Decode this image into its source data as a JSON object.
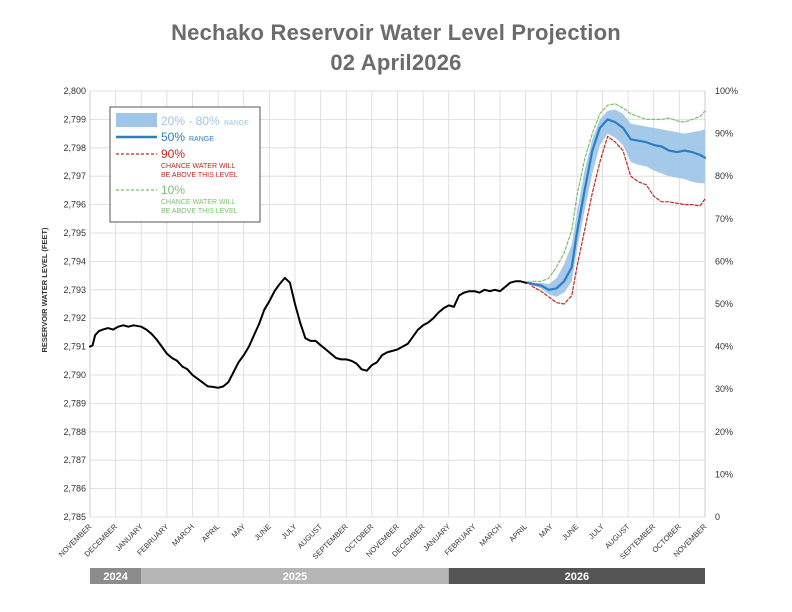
{
  "title_line1": "Nechako Reservoir Water Level Projection",
  "title_line2": "02 April2026",
  "chart_data": {
    "type": "line",
    "ylabel": "RESERVOIR WATER LEVEL (FEET)",
    "ylim": [
      2785,
      2800
    ],
    "y_ticks": [
      "2,785",
      "2,786",
      "2,787",
      "2,788",
      "2,789",
      "2,790",
      "2,791",
      "2,792",
      "2,793",
      "2,794",
      "2,795",
      "2,796",
      "2,797",
      "2,798",
      "2,799",
      "2,800"
    ],
    "y2lim": [
      0,
      100
    ],
    "y2_ticks": [
      "0",
      "10%",
      "20%",
      "30%",
      "40%",
      "50%",
      "60%",
      "70%",
      "80%",
      "90%",
      "100%"
    ],
    "x_range_months": [
      0,
      24
    ],
    "x_ticks": [
      "NOVEMBER",
      "DECEMBER",
      "JANUARY",
      "FEBRUARY",
      "MARCH",
      "APRIL",
      "MAY",
      "JUNE",
      "JULY",
      "AUGUST",
      "SEPTEMBER",
      "OCTOBER",
      "NOVEMBER",
      "DECEMBER",
      "JANUARY",
      "FEBRUARY",
      "MARCH",
      "APRIL",
      "MAY",
      "JUNE",
      "JULY",
      "AUGUST",
      "SEPTEMBER",
      "OCTOBER",
      "NOVEMBER"
    ],
    "years": [
      {
        "label": "2024",
        "start": 0,
        "end": 2,
        "color": "#8c8c8c"
      },
      {
        "label": "2025",
        "start": 2,
        "end": 14,
        "color": "#b5b5b5"
      },
      {
        "label": "2026",
        "start": 14,
        "end": 24,
        "color": "#555555"
      }
    ],
    "grid": true,
    "legend_position": "top-left",
    "legend": {
      "band_label": "20% - 80%",
      "band_suffix": "RANGE",
      "median_label": "50%",
      "median_suffix": "RANGE",
      "p90_label": "90%",
      "p90_desc1": "CHANCE WATER WILL",
      "p90_desc2": "BE ABOVE THIS LEVEL",
      "p10_label": "10%",
      "p10_desc1": "CHANCE WATER WILL",
      "p10_desc2": "BE ABOVE THIS LEVEL"
    },
    "colors": {
      "historical": "#000000",
      "median": "#2e7cc4",
      "band": "#9fc6e8",
      "p90": "#c0281e",
      "p10": "#7cbf6e",
      "grid": "#d9d9d9"
    },
    "series": [
      {
        "name": "historical",
        "x": [
          0,
          0.1,
          0.2,
          0.35,
          0.5,
          0.7,
          0.9,
          1.0,
          1.1,
          1.3,
          1.5,
          1.7,
          2.0,
          2.2,
          2.4,
          2.6,
          2.8,
          3.0,
          3.2,
          3.4,
          3.6,
          3.8,
          4.0,
          4.3,
          4.6,
          4.8,
          5.0,
          5.2,
          5.4,
          5.6,
          5.8,
          6.0,
          6.2,
          6.4,
          6.6,
          6.8,
          7.0,
          7.2,
          7.4,
          7.6,
          7.8,
          8.0,
          8.2,
          8.4,
          8.6,
          8.8,
          9.0,
          9.2,
          9.4,
          9.6,
          9.8,
          10.0,
          10.2,
          10.4,
          10.6,
          10.8,
          11.0,
          11.2,
          11.4,
          11.6,
          11.8,
          12.0,
          12.2,
          12.4,
          12.6,
          12.8,
          13.0,
          13.2,
          13.4,
          13.6,
          13.8,
          14.0,
          14.2,
          14.4,
          14.6,
          14.8,
          15.0,
          15.2,
          15.4,
          15.6,
          15.8,
          16.0,
          16.2,
          16.4,
          16.6,
          16.8,
          17.0,
          17.1
        ],
        "values": [
          2791.0,
          2791.05,
          2791.4,
          2791.55,
          2791.6,
          2791.65,
          2791.6,
          2791.65,
          2791.7,
          2791.75,
          2791.7,
          2791.75,
          2791.7,
          2791.6,
          2791.45,
          2791.25,
          2791.0,
          2790.75,
          2790.6,
          2790.5,
          2790.3,
          2790.2,
          2790.0,
          2789.8,
          2789.6,
          2789.58,
          2789.55,
          2789.6,
          2789.75,
          2790.1,
          2790.45,
          2790.7,
          2791.0,
          2791.4,
          2791.8,
          2792.3,
          2792.6,
          2792.95,
          2793.2,
          2793.42,
          2793.25,
          2792.5,
          2791.85,
          2791.3,
          2791.2,
          2791.2,
          2791.05,
          2790.9,
          2790.75,
          2790.6,
          2790.55,
          2790.55,
          2790.5,
          2790.4,
          2790.2,
          2790.15,
          2790.35,
          2790.45,
          2790.7,
          2790.8,
          2790.85,
          2790.9,
          2791.0,
          2791.1,
          2791.35,
          2791.6,
          2791.75,
          2791.85,
          2792.0,
          2792.2,
          2792.35,
          2792.45,
          2792.4,
          2792.8,
          2792.9,
          2792.95,
          2792.95,
          2792.9,
          2793.0,
          2792.95,
          2793.0,
          2792.95,
          2793.1,
          2793.25,
          2793.3,
          2793.3,
          2793.25,
          2793.25
        ]
      },
      {
        "name": "50%",
        "x": [
          17.1,
          17.3,
          17.6,
          17.9,
          18.2,
          18.5,
          18.8,
          19.0,
          19.3,
          19.6,
          19.9,
          20.2,
          20.5,
          20.8,
          21.1,
          21.4,
          21.7,
          22.0,
          22.3,
          22.6,
          22.9,
          23.2,
          23.5,
          23.8,
          24.0
        ],
        "values": [
          2793.25,
          2793.2,
          2793.15,
          2793.0,
          2793.05,
          2793.3,
          2793.8,
          2795.0,
          2796.5,
          2797.9,
          2798.7,
          2799.0,
          2798.9,
          2798.7,
          2798.3,
          2798.25,
          2798.2,
          2798.1,
          2798.05,
          2797.9,
          2797.85,
          2797.9,
          2797.85,
          2797.75,
          2797.65
        ]
      },
      {
        "name": "90%",
        "x": [
          17.1,
          17.3,
          17.6,
          17.9,
          18.2,
          18.5,
          18.8,
          19.0,
          19.3,
          19.6,
          19.9,
          20.2,
          20.5,
          20.8,
          21.1,
          21.4,
          21.7,
          22.0,
          22.3,
          22.6,
          22.9,
          23.2,
          23.5,
          23.8,
          24.0
        ],
        "values": [
          2793.25,
          2793.1,
          2792.95,
          2792.75,
          2792.55,
          2792.5,
          2792.8,
          2793.8,
          2795.1,
          2796.4,
          2797.5,
          2798.4,
          2798.2,
          2797.9,
          2797.0,
          2796.8,
          2796.7,
          2796.3,
          2796.1,
          2796.1,
          2796.05,
          2796.0,
          2796.0,
          2795.95,
          2796.2
        ]
      },
      {
        "name": "10%",
        "x": [
          17.1,
          17.3,
          17.6,
          17.9,
          18.2,
          18.5,
          18.8,
          19.0,
          19.3,
          19.6,
          19.9,
          20.2,
          20.5,
          20.8,
          21.1,
          21.4,
          21.7,
          22.0,
          22.3,
          22.6,
          22.9,
          23.2,
          23.5,
          23.8,
          24.0
        ],
        "values": [
          2793.25,
          2793.3,
          2793.3,
          2793.4,
          2793.8,
          2794.3,
          2795.1,
          2796.3,
          2797.6,
          2798.5,
          2799.2,
          2799.5,
          2799.55,
          2799.4,
          2799.2,
          2799.1,
          2799.0,
          2799.0,
          2799.0,
          2799.05,
          2798.95,
          2798.9,
          2799.0,
          2799.1,
          2799.3
        ]
      },
      {
        "name": "20% - 80%",
        "x": [
          17.1,
          17.3,
          17.6,
          17.9,
          18.2,
          18.5,
          18.8,
          19.0,
          19.3,
          19.6,
          19.9,
          20.2,
          20.5,
          20.8,
          21.1,
          21.4,
          21.7,
          22.0,
          22.3,
          22.6,
          22.9,
          23.2,
          23.5,
          23.8,
          24.0
        ],
        "lower": [
          2793.25,
          2793.15,
          2793.05,
          2792.85,
          2792.75,
          2792.9,
          2793.3,
          2794.4,
          2795.8,
          2797.1,
          2798.1,
          2798.5,
          2798.35,
          2798.1,
          2797.5,
          2797.4,
          2797.35,
          2797.2,
          2797.1,
          2797.0,
          2796.95,
          2796.9,
          2796.8,
          2796.75,
          2796.75
        ],
        "upper": [
          2793.25,
          2793.25,
          2793.25,
          2793.2,
          2793.4,
          2793.9,
          2794.6,
          2795.7,
          2797.2,
          2798.3,
          2799.0,
          2799.3,
          2799.35,
          2799.2,
          2798.85,
          2798.8,
          2798.75,
          2798.7,
          2798.65,
          2798.6,
          2798.55,
          2798.5,
          2798.55,
          2798.6,
          2798.65
        ]
      }
    ]
  }
}
